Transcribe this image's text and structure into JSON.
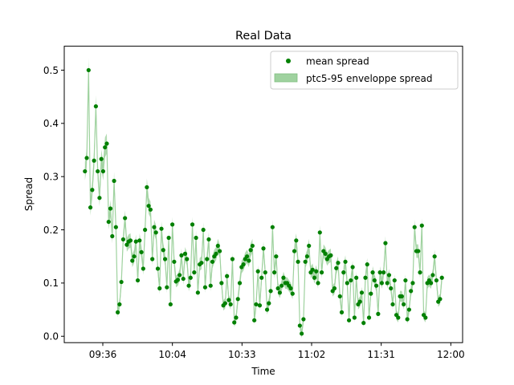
{
  "chart_data": {
    "type": "scatter",
    "title": "Real Data",
    "xlabel": "Time",
    "ylabel": "Spread",
    "x_ticks": [
      "09:36",
      "10:04",
      "10:33",
      "11:02",
      "11:31",
      "12:00"
    ],
    "y_ticks": [
      "0.0",
      "0.1",
      "0.2",
      "0.3",
      "0.4",
      "0.5"
    ],
    "ylim": [
      -0.012,
      0.545
    ],
    "xlim": [
      -0.058,
      1.058
    ],
    "x_tick_positions": [
      0.05,
      0.245,
      0.44,
      0.635,
      0.83,
      1.025
    ],
    "legend": {
      "position": "upper right",
      "entries": [
        {
          "label": "mean spread",
          "kind": "marker",
          "color": "#008000"
        },
        {
          "label": "ptc5-95 enveloppe spread",
          "kind": "patch",
          "color": "#9fd29f"
        }
      ]
    },
    "colors": {
      "points": "#008000",
      "band": "#9fd29f",
      "line": "#9fd29f"
    },
    "series": [
      {
        "name": "mean spread",
        "y": [
          0.31,
          0.335,
          0.5,
          0.242,
          0.275,
          0.33,
          0.432,
          0.31,
          0.26,
          0.333,
          0.31,
          0.355,
          0.362,
          0.215,
          0.24,
          0.188,
          0.292,
          0.205,
          0.045,
          0.06,
          0.102,
          0.182,
          0.222,
          0.172,
          0.178,
          0.18,
          0.142,
          0.15,
          0.178,
          0.105,
          0.18,
          0.158,
          0.127,
          0.2,
          0.28,
          0.245,
          0.238,
          0.145,
          0.205,
          0.195,
          0.127,
          0.09,
          0.202,
          0.162,
          0.145,
          0.092,
          0.185,
          0.06,
          0.21,
          0.14,
          0.103,
          0.106,
          0.115,
          0.152,
          0.108,
          0.155,
          0.145,
          0.095,
          0.11,
          0.21,
          0.12,
          0.185,
          0.082,
          0.135,
          0.138,
          0.2,
          0.092,
          0.145,
          0.182,
          0.095,
          0.14,
          0.15,
          0.155,
          0.17,
          0.16,
          0.1,
          0.058,
          0.062,
          0.113,
          0.068,
          0.06,
          0.145,
          0.026,
          0.035,
          0.07,
          0.1,
          0.13,
          0.135,
          0.145,
          0.15,
          0.142,
          0.162,
          0.17,
          0.03,
          0.06,
          0.122,
          0.058,
          0.11,
          0.165,
          0.12,
          0.05,
          0.062,
          0.085,
          0.205,
          0.12,
          0.15,
          0.09,
          0.082,
          0.095,
          0.11,
          0.1,
          0.1,
          0.095,
          0.09,
          0.08,
          0.16,
          0.18,
          0.14,
          0.02,
          0.005,
          0.032,
          0.14,
          0.15,
          0.17,
          0.12,
          0.125,
          0.11,
          0.122,
          0.1,
          0.195,
          0.12,
          0.16,
          0.155,
          0.145,
          0.15,
          0.152,
          0.085,
          0.09,
          0.128,
          0.138,
          0.075,
          0.045,
          0.12,
          0.14,
          0.1,
          0.03,
          0.105,
          0.13,
          0.035,
          0.11,
          0.06,
          0.065,
          0.082,
          0.025,
          0.11,
          0.135,
          0.035,
          0.08,
          0.12,
          0.105,
          0.095,
          0.042,
          0.12,
          0.1,
          0.12,
          0.175,
          0.1,
          0.115,
          0.09,
          0.06,
          0.105,
          0.04,
          0.035,
          0.075,
          0.075,
          0.06,
          0.105,
          0.032,
          0.05,
          0.085,
          0.1,
          0.205,
          0.16,
          0.16,
          0.12,
          0.208,
          0.04,
          0.035,
          0.1,
          0.105,
          0.1,
          0.115,
          0.15,
          0.105,
          0.065,
          0.07,
          0.11
        ]
      }
    ]
  }
}
